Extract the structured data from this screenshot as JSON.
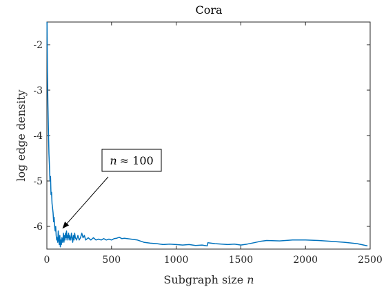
{
  "chart_data": {
    "type": "line",
    "title": "Cora",
    "xlabel": "Subgraph size ",
    "xlabel_var": "n",
    "ylabel": "log edge density",
    "xlim": [
      0,
      2500
    ],
    "ylim": [
      -6.5,
      -1.5
    ],
    "xticks": [
      0,
      500,
      1000,
      1500,
      2000,
      2500
    ],
    "yticks": [
      -6,
      -5,
      -4,
      -3,
      -2
    ],
    "grid": false,
    "series": [
      {
        "color": "#0072BD",
        "x": [
          1,
          4,
          8,
          12,
          16,
          20,
          24,
          28,
          32,
          36,
          40,
          44,
          48,
          52,
          56,
          60,
          64,
          68,
          72,
          76,
          80,
          84,
          88,
          92,
          96,
          100,
          104,
          108,
          112,
          116,
          120,
          124,
          128,
          132,
          136,
          140,
          144,
          148,
          152,
          156,
          160,
          164,
          168,
          172,
          176,
          180,
          185,
          190,
          195,
          200,
          205,
          210,
          215,
          220,
          230,
          240,
          250,
          260,
          270,
          280,
          290,
          300,
          320,
          340,
          360,
          380,
          400,
          420,
          440,
          460,
          480,
          500,
          520,
          540,
          560,
          580,
          600,
          650,
          700,
          750,
          800,
          850,
          900,
          950,
          1000,
          1050,
          1100,
          1150,
          1200,
          1240,
          1245,
          1300,
          1350,
          1400,
          1450,
          1500,
          1550,
          1600,
          1650,
          1700,
          1800,
          1900,
          2000,
          2100,
          2200,
          2300,
          2400,
          2450,
          2480
        ],
        "y": [
          -1.5,
          -2.6,
          -3.3,
          -3.9,
          -4.4,
          -4.7,
          -5.0,
          -4.9,
          -5.3,
          -5.25,
          -5.5,
          -5.6,
          -5.7,
          -5.9,
          -5.8,
          -6.0,
          -6.1,
          -6.0,
          -6.2,
          -6.3,
          -6.25,
          -6.35,
          -6.1,
          -6.3,
          -6.4,
          -6.2,
          -6.45,
          -6.3,
          -6.4,
          -6.25,
          -6.35,
          -6.3,
          -6.15,
          -6.35,
          -6.2,
          -6.3,
          -6.15,
          -6.25,
          -6.1,
          -6.3,
          -6.2,
          -6.25,
          -6.15,
          -6.3,
          -6.2,
          -6.25,
          -6.3,
          -6.15,
          -6.25,
          -6.35,
          -6.2,
          -6.3,
          -6.15,
          -6.25,
          -6.3,
          -6.2,
          -6.3,
          -6.25,
          -6.15,
          -6.25,
          -6.2,
          -6.3,
          -6.25,
          -6.3,
          -6.25,
          -6.3,
          -6.28,
          -6.3,
          -6.27,
          -6.3,
          -6.28,
          -6.3,
          -6.27,
          -6.26,
          -6.24,
          -6.27,
          -6.26,
          -6.28,
          -6.3,
          -6.35,
          -6.37,
          -6.38,
          -6.4,
          -6.39,
          -6.4,
          -6.41,
          -6.4,
          -6.42,
          -6.41,
          -6.43,
          -6.36,
          -6.38,
          -6.39,
          -6.4,
          -6.39,
          -6.41,
          -6.39,
          -6.36,
          -6.33,
          -6.31,
          -6.32,
          -6.3,
          -6.3,
          -6.31,
          -6.33,
          -6.35,
          -6.38,
          -6.41,
          -6.43
        ]
      }
    ],
    "annotation": {
      "text_lhs": "n",
      "text_rhs": "≈ 100",
      "arrow_to": [
        120,
        -6.05
      ]
    }
  }
}
